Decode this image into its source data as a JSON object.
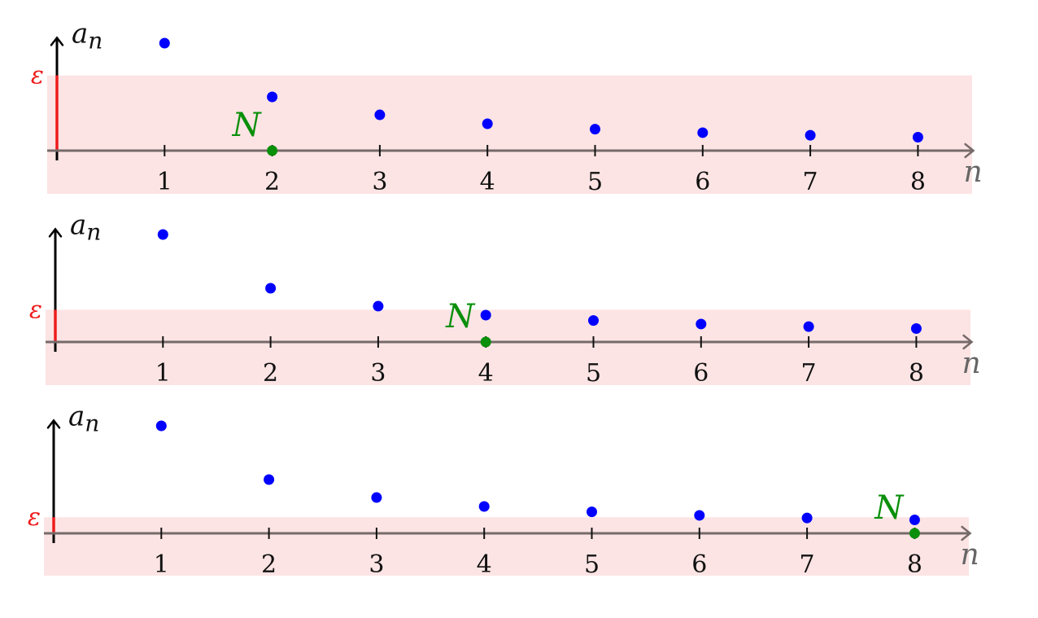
{
  "colors": {
    "band": "#fde4e4",
    "epsilon": "#ee1c1c",
    "point": "#0000ff",
    "highlight": "#0a8f0a",
    "axis_x": "#766a6a",
    "axis_y": "#000000"
  },
  "chart_data": [
    {
      "type": "scatter",
      "ylabel": "a_n",
      "ylabel_display": "a",
      "ylabel_sub": "n",
      "xlabel": "n",
      "x": [
        1,
        2,
        3,
        4,
        5,
        6,
        7,
        8
      ],
      "y": [
        1,
        0.5,
        0.333,
        0.25,
        0.2,
        0.167,
        0.143,
        0.125
      ],
      "xlim": [
        0,
        8.5
      ],
      "ylim": [
        -0.4,
        1.05
      ],
      "epsilon": 0.7,
      "epsilon_label": "ε",
      "N": 2,
      "N_label": "N",
      "x_ticks": [
        1,
        2,
        3,
        4,
        5,
        6,
        7,
        8
      ],
      "x_tick_labels": [
        "1",
        "2",
        "3",
        "4",
        "5",
        "6",
        "7",
        "8"
      ]
    },
    {
      "type": "scatter",
      "ylabel": "a_n",
      "ylabel_display": "a",
      "ylabel_sub": "n",
      "xlabel": "n",
      "x": [
        1,
        2,
        3,
        4,
        5,
        6,
        7,
        8
      ],
      "y": [
        1,
        0.5,
        0.333,
        0.25,
        0.2,
        0.167,
        0.143,
        0.125
      ],
      "xlim": [
        0,
        8.5
      ],
      "ylim": [
        -0.4,
        1.05
      ],
      "epsilon": 0.3,
      "epsilon_label": "ε",
      "N": 4,
      "N_label": "N",
      "x_ticks": [
        1,
        2,
        3,
        4,
        5,
        6,
        7,
        8
      ],
      "x_tick_labels": [
        "1",
        "2",
        "3",
        "4",
        "5",
        "6",
        "7",
        "8"
      ]
    },
    {
      "type": "scatter",
      "ylabel": "a_n",
      "ylabel_display": "a",
      "ylabel_sub": "n",
      "xlabel": "n",
      "x": [
        1,
        2,
        3,
        4,
        5,
        6,
        7,
        8
      ],
      "y": [
        1,
        0.5,
        0.333,
        0.25,
        0.2,
        0.167,
        0.143,
        0.125
      ],
      "xlim": [
        0,
        8.5
      ],
      "ylim": [
        -0.4,
        1.05
      ],
      "epsilon": 0.15,
      "epsilon_label": "ε",
      "N": 8,
      "N_label": "N",
      "x_ticks": [
        1,
        2,
        3,
        4,
        5,
        6,
        7,
        8
      ],
      "x_tick_labels": [
        "1",
        "2",
        "3",
        "4",
        "5",
        "6",
        "7",
        "8"
      ]
    }
  ]
}
